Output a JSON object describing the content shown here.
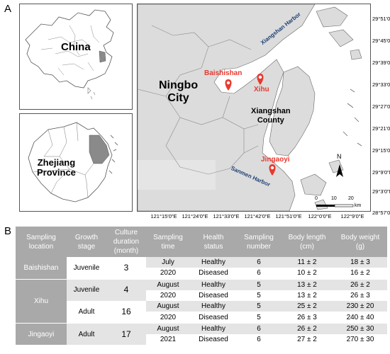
{
  "panels": {
    "a": "A",
    "b": "B"
  },
  "insets": {
    "china": {
      "label": "China"
    },
    "zhejiang": {
      "label_line1": "Zhejiang",
      "label_line2": "Province"
    }
  },
  "main_map": {
    "labels": {
      "ningbo_line1": "Ningbo",
      "ningbo_line2": "City",
      "xiangshan_line1": "Xiangshan",
      "xiangshan_line2": "County",
      "xiangshan_harbor": "Xiangshan Harbor",
      "sanmen_harbor": "Sanmen Harbor"
    },
    "sites": [
      "Baishishan",
      "Xihu",
      "Jingaoyi"
    ],
    "north": "N",
    "scale": {
      "ticks": [
        "0",
        "10",
        "20"
      ],
      "unit": "km"
    },
    "lat_ticks": [
      "29°51'0\"N",
      "29°45'0\"N",
      "29°39'0\"N",
      "29°33'0\"N",
      "29°27'0\"N",
      "29°21'0\"N",
      "29°15'0\"N",
      "29°9'0\"N",
      "29°3'0\"N",
      "28°57'0\"N"
    ],
    "lon_ticks": [
      "121°15'0\"E",
      "121°24'0\"E",
      "121°33'0\"E",
      "121°42'0\"E",
      "121°51'0\"E",
      "122°0'0\"E",
      "122°9'0\"E"
    ]
  },
  "table": {
    "headers": [
      [
        "Sampling",
        "location"
      ],
      [
        "Growth",
        "stage"
      ],
      [
        "Culture",
        "duration",
        "(month)"
      ],
      [
        "Sampling",
        "time"
      ],
      [
        "Health",
        "status"
      ],
      [
        "Sampling",
        "number"
      ],
      [
        "Body length",
        "(cm)"
      ],
      [
        "Body weight",
        "(g)"
      ]
    ],
    "groups": [
      {
        "location": "Baishishan",
        "stage": "Juvenile",
        "duration": "3",
        "time1": "July",
        "time2": "2020",
        "rows": [
          {
            "status": "Healthy",
            "number": "6",
            "length": "11 ± 2",
            "weight": "18 ± 3"
          },
          {
            "status": "Diseased",
            "number": "6",
            "length": "10 ± 2",
            "weight": "16 ± 2"
          }
        ]
      },
      {
        "location": "Xihu",
        "stage": "Juvenile",
        "duration": "4",
        "time1": "August",
        "time2": "2020",
        "rows": [
          {
            "status": "Healthy",
            "number": "5",
            "length": "13 ± 2",
            "weight": "26 ± 2"
          },
          {
            "status": "Diseased",
            "number": "5",
            "length": "13 ± 2",
            "weight": "26 ± 3"
          }
        ]
      },
      {
        "location": "",
        "stage": "Adult",
        "duration": "16",
        "time1": "August",
        "time2": "2020",
        "rows": [
          {
            "status": "Healthy",
            "number": "5",
            "length": "25 ± 2",
            "weight": "230 ± 20"
          },
          {
            "status": "Diseased",
            "number": "5",
            "length": "26 ± 3",
            "weight": "240 ± 40"
          }
        ]
      },
      {
        "location": "Jingaoyi",
        "stage": "Adult",
        "duration": "17",
        "time1": "August",
        "time2": "2021",
        "rows": [
          {
            "status": "Healthy",
            "number": "6",
            "length": "26 ± 2",
            "weight": "250 ± 30"
          },
          {
            "status": "Diseased",
            "number": "6",
            "length": "27 ± 2",
            "weight": "270 ± 30"
          }
        ]
      }
    ]
  }
}
